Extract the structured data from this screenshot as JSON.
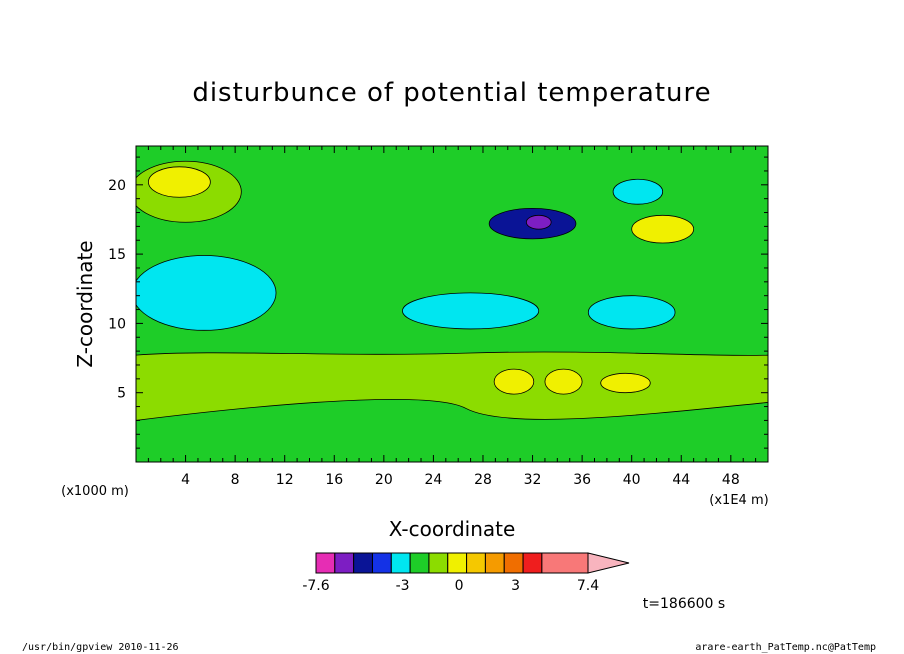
{
  "chart_data": {
    "type": "heatmap",
    "title": "disturbunce of potential temperature",
    "xlabel": "X-coordinate",
    "ylabel": "Z-coordinate",
    "x_unit_label": "(x1E4 m)",
    "y_unit_label": "(x1000 m)",
    "xlim": [
      0,
      51
    ],
    "ylim": [
      0,
      22.8
    ],
    "x_ticks": [
      4,
      8,
      12,
      16,
      20,
      24,
      28,
      32,
      36,
      40,
      44,
      48
    ],
    "y_ticks": [
      5,
      10,
      15,
      20
    ],
    "colorbar": {
      "levels": [
        -7.6,
        -6.6,
        -5.6,
        -4.6,
        -3.6,
        -2.6,
        -1.6,
        -0.6,
        0.4,
        1.4,
        2.4,
        3.4,
        4.4,
        5.4,
        7.4
      ],
      "colors": [
        "#e62db4",
        "#7d1ec3",
        "#0a1496",
        "#1432e6",
        "#00e6f0",
        "#1ecd28",
        "#8cdc00",
        "#f0f000",
        "#f5c800",
        "#f59b00",
        "#f06e00",
        "#ef1e1e",
        "#f87878",
        "#f8b4be"
      ],
      "tick_labels": [
        "-7.6",
        "-3",
        "0",
        "3",
        "7.4"
      ],
      "tick_values": [
        -7.6,
        -3,
        0,
        3,
        7.4
      ]
    },
    "time_label": "t=186600 s",
    "grid": false,
    "features": [
      {
        "kind": "band",
        "level": 1,
        "x_range": [
          0,
          51
        ],
        "z_range": [
          3,
          8
        ]
      },
      {
        "kind": "blob",
        "level": 2,
        "center": [
          30.5,
          5.8
        ],
        "size": [
          1.6,
          0.9
        ]
      },
      {
        "kind": "blob",
        "level": 2,
        "center": [
          34.5,
          5.8
        ],
        "size": [
          1.5,
          0.9
        ]
      },
      {
        "kind": "blob",
        "level": 2,
        "center": [
          39.5,
          5.7
        ],
        "size": [
          2.0,
          0.7
        ]
      },
      {
        "kind": "blob",
        "level": -1,
        "center": [
          5.5,
          12.2
        ],
        "size": [
          5.8,
          2.7
        ]
      },
      {
        "kind": "blob",
        "level": -1,
        "center": [
          27,
          10.9
        ],
        "size": [
          5.5,
          1.3
        ]
      },
      {
        "kind": "blob",
        "level": -1,
        "center": [
          40,
          10.8
        ],
        "size": [
          3.5,
          1.2
        ]
      },
      {
        "kind": "blob",
        "level": -3,
        "center": [
          32,
          17.2
        ],
        "size": [
          3.5,
          1.1
        ]
      },
      {
        "kind": "blob",
        "level": -4,
        "center": [
          32.5,
          17.3
        ],
        "size": [
          1.0,
          0.5
        ]
      },
      {
        "kind": "blob",
        "level": 1,
        "center": [
          4,
          19.5
        ],
        "size": [
          4.5,
          2.2
        ]
      },
      {
        "kind": "blob",
        "level": 2,
        "center": [
          3.5,
          20.2
        ],
        "size": [
          2.5,
          1.1
        ]
      },
      {
        "kind": "blob",
        "level": 2,
        "center": [
          42.5,
          16.8
        ],
        "size": [
          2.5,
          1.0
        ]
      },
      {
        "kind": "blob",
        "level": -1,
        "center": [
          40.5,
          19.5
        ],
        "size": [
          2.0,
          0.9
        ]
      }
    ]
  },
  "footer": {
    "left": "/usr/bin/gpview   2010-11-26",
    "right": "arare-earth_PatTemp.nc@PatTemp"
  }
}
